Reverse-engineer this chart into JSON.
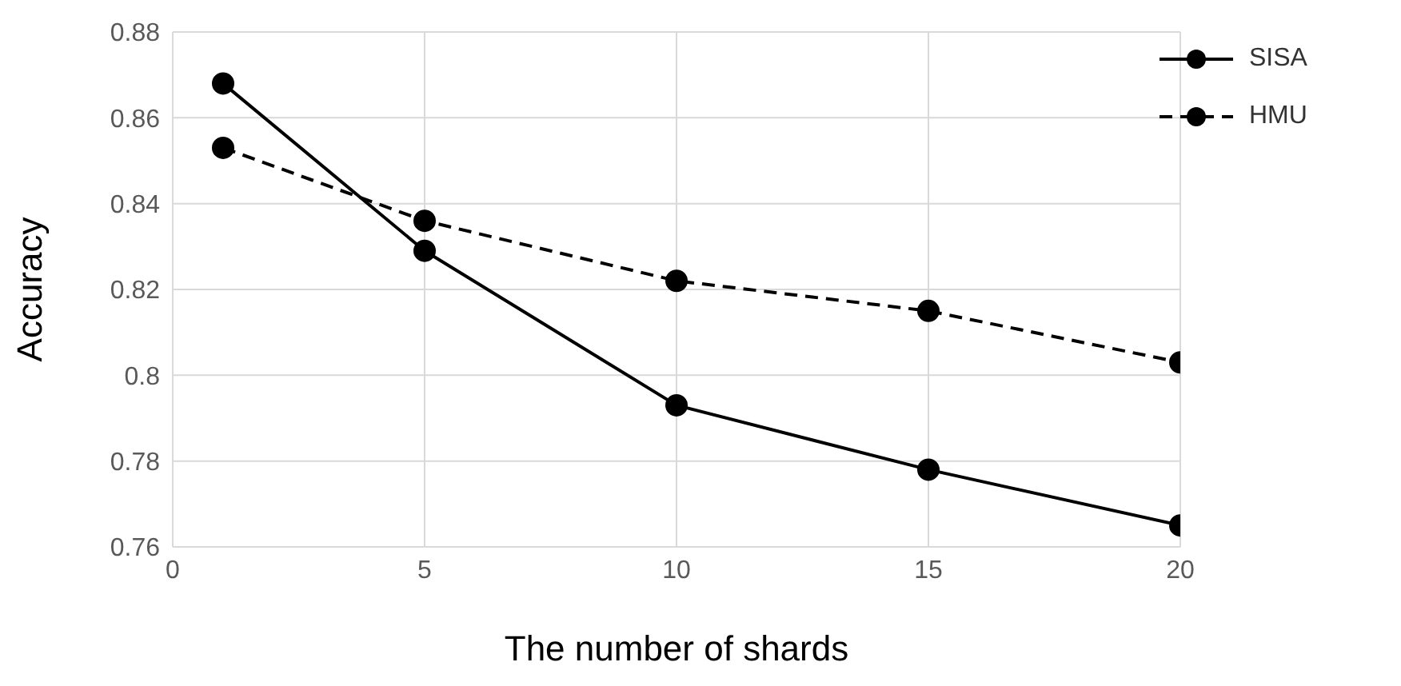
{
  "chart_data": {
    "type": "line",
    "xlabel": "The number of shards",
    "ylabel": "Accuracy",
    "x": [
      1,
      5,
      10,
      15,
      20
    ],
    "series": [
      {
        "name": "SISA",
        "color": "#000000",
        "values": [
          0.868,
          0.829,
          0.793,
          0.778,
          0.765
        ],
        "line_style": "solid"
      },
      {
        "name": "HMU",
        "color": "#000000",
        "values": [
          0.853,
          0.836,
          0.822,
          0.815,
          0.803
        ],
        "line_style": "dashed"
      }
    ],
    "xlim": [
      0,
      20
    ],
    "xticks": [
      0,
      5,
      10,
      15,
      20
    ],
    "ylim": [
      0.76,
      0.88
    ],
    "yticks": [
      0.76,
      0.78,
      0.8,
      0.82,
      0.84,
      0.86,
      0.88
    ],
    "grid": true,
    "legend": "top right",
    "marker": "circle"
  }
}
